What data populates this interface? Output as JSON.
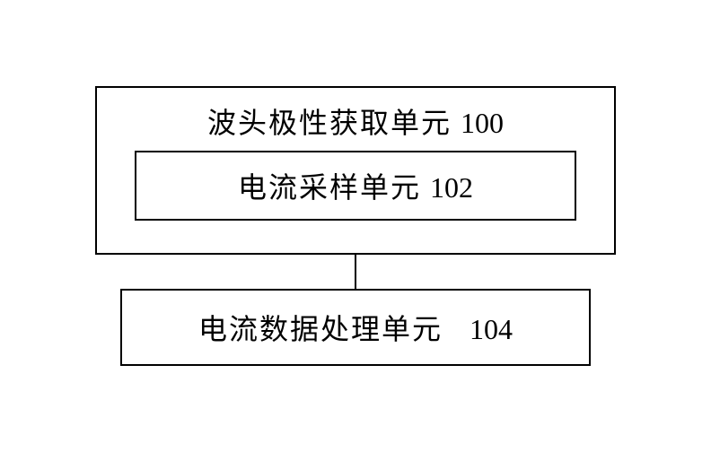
{
  "diagram": {
    "type": "flowchart",
    "background_color": "#ffffff",
    "border_color": "#000000",
    "border_width": 2,
    "text_color": "#000000",
    "font_family": "SimSun",
    "font_size": 32,
    "outer_block": {
      "label": "波头极性获取单元",
      "number": "100"
    },
    "inner_block": {
      "label": "电流采样单元",
      "number": "102"
    },
    "bottom_block": {
      "label": "电流数据处理单元",
      "number": "104"
    },
    "connector": {
      "length": 38,
      "width": 2,
      "color": "#000000"
    }
  }
}
